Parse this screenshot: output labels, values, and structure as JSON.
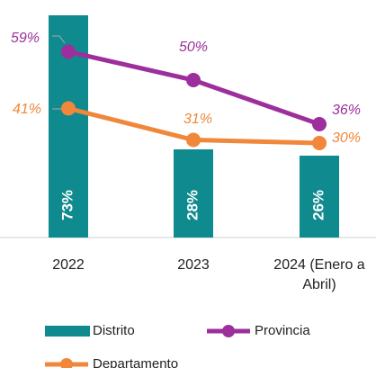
{
  "chart_data": {
    "type": "bar_line",
    "categories": [
      "2022",
      "2023",
      "2024 (Enero a Abril)"
    ],
    "ylim": [
      0,
      70
    ],
    "series": [
      {
        "name": "Distrito",
        "type": "bar",
        "color": "#0f8a8e",
        "values": [
          73,
          28,
          26
        ],
        "value_labels": [
          "73%",
          "28%",
          "26%"
        ]
      },
      {
        "name": "Provincia",
        "type": "line",
        "color": "#9c2f9c",
        "values": [
          59,
          50,
          36
        ],
        "value_labels": [
          "59%",
          "50%",
          "36%"
        ]
      },
      {
        "name": "Departamento",
        "type": "line",
        "color": "#f0873a",
        "values": [
          41,
          31,
          30
        ],
        "value_labels": [
          "41%",
          "31%",
          "30%"
        ]
      }
    ]
  }
}
